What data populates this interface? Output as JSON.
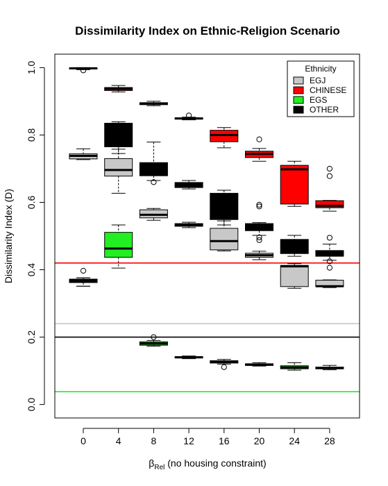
{
  "chart_data": {
    "type": "boxplot",
    "title": "Dissimilarity Index on Ethnic-Religion Scenario",
    "ylabel": "Dissimilarity Index (D)",
    "xlabel": {
      "beta": "β",
      "sub": "Rel",
      "rest": " (no housing constraint)"
    },
    "categories": [
      "0",
      "4",
      "8",
      "12",
      "16",
      "20",
      "24",
      "28"
    ],
    "yticks": [
      "0.0",
      "0.2",
      "0.4",
      "0.6",
      "0.8",
      "1.0"
    ],
    "ylim": [
      -0.04,
      1.04
    ],
    "legend": {
      "title": "Ethnicity",
      "position": "top-right",
      "entries": [
        {
          "label": "EGJ",
          "color": "#c8c8c8"
        },
        {
          "label": "CHINESE",
          "color": "#ff0000"
        },
        {
          "label": "EGS",
          "color": "#22ee22"
        },
        {
          "label": "OTHER",
          "color": "#000000"
        }
      ]
    },
    "hlines": [
      {
        "y": 0.42,
        "color": "#ff0000"
      },
      {
        "y": 0.24,
        "color": "#c8c8c8"
      },
      {
        "y": 0.2,
        "color": "#000000"
      },
      {
        "y": 0.038,
        "color": "#22ee22"
      }
    ],
    "boxes": [
      {
        "cat": 0,
        "series": "EGJ",
        "color": "#c8c8c8",
        "wmin": 0.727,
        "q1": 0.729,
        "med": 0.738,
        "q3": 0.744,
        "wmax": 0.759,
        "out": []
      },
      {
        "cat": 0,
        "series": "CHINESE",
        "color": "#ff0000",
        "wmin": 0.994,
        "q1": 0.996,
        "med": 0.998,
        "q3": 0.999,
        "wmax": 1.0,
        "out": [
          0.992
        ]
      },
      {
        "cat": 0,
        "series": "EGS",
        "color": "#22ee22",
        "wmin": 0.351,
        "q1": 0.362,
        "med": 0.366,
        "q3": 0.372,
        "wmax": 0.376,
        "out": [
          0.397
        ]
      },
      {
        "cat": 0,
        "series": "OTHER",
        "color": "#000000",
        "wmin": 0.351,
        "q1": 0.362,
        "med": 0.366,
        "q3": 0.372,
        "wmax": 0.376,
        "out": []
      },
      {
        "cat": 1,
        "series": "EGJ",
        "color": "#c8c8c8",
        "wmin": 0.627,
        "q1": 0.678,
        "med": 0.696,
        "q3": 0.73,
        "wmax": 0.758,
        "out": []
      },
      {
        "cat": 1,
        "series": "CHINESE",
        "color": "#ff0000",
        "wmin": 0.928,
        "q1": 0.932,
        "med": 0.937,
        "q3": 0.941,
        "wmax": 0.947,
        "out": []
      },
      {
        "cat": 1,
        "series": "EGS",
        "color": "#22ee22",
        "wmin": 0.405,
        "q1": 0.437,
        "med": 0.463,
        "q3": 0.511,
        "wmax": 0.533,
        "out": []
      },
      {
        "cat": 1,
        "series": "OTHER",
        "color": "#000000",
        "wmin": 0.745,
        "q1": 0.765,
        "med": 0.785,
        "q3": 0.835,
        "wmax": 0.839,
        "out": []
      },
      {
        "cat": 2,
        "series": "EGJ",
        "color": "#c8c8c8",
        "wmin": 0.547,
        "q1": 0.554,
        "med": 0.563,
        "q3": 0.578,
        "wmax": 0.582,
        "out": []
      },
      {
        "cat": 2,
        "series": "CHINESE",
        "color": "#ff0000",
        "wmin": 0.887,
        "q1": 0.89,
        "med": 0.893,
        "q3": 0.896,
        "wmax": 0.9,
        "out": []
      },
      {
        "cat": 2,
        "series": "EGS",
        "color": "#22ee22",
        "wmin": 0.173,
        "q1": 0.176,
        "med": 0.181,
        "q3": 0.186,
        "wmax": 0.19,
        "out": [
          0.2
        ]
      },
      {
        "cat": 2,
        "series": "OTHER",
        "color": "#000000",
        "wmin": 0.665,
        "q1": 0.679,
        "med": 0.697,
        "q3": 0.718,
        "wmax": 0.779,
        "out": [
          0.66
        ]
      },
      {
        "cat": 3,
        "series": "EGJ",
        "color": "#c8c8c8",
        "wmin": 0.525,
        "q1": 0.529,
        "med": 0.533,
        "q3": 0.537,
        "wmax": 0.541,
        "out": []
      },
      {
        "cat": 3,
        "series": "CHINESE",
        "color": "#ff0000",
        "wmin": 0.845,
        "q1": 0.847,
        "med": 0.849,
        "q3": 0.851,
        "wmax": 0.853,
        "out": [
          0.858
        ]
      },
      {
        "cat": 3,
        "series": "EGS",
        "color": "#22ee22",
        "wmin": 0.136,
        "q1": 0.138,
        "med": 0.14,
        "q3": 0.142,
        "wmax": 0.144,
        "out": []
      },
      {
        "cat": 3,
        "series": "OTHER",
        "color": "#000000",
        "wmin": 0.64,
        "q1": 0.644,
        "med": 0.65,
        "q3": 0.659,
        "wmax": 0.665,
        "out": []
      },
      {
        "cat": 4,
        "series": "EGJ",
        "color": "#c8c8c8",
        "wmin": 0.456,
        "q1": 0.459,
        "med": 0.485,
        "q3": 0.523,
        "wmax": 0.545,
        "out": []
      },
      {
        "cat": 4,
        "series": "CHINESE",
        "color": "#ff0000",
        "wmin": 0.762,
        "q1": 0.78,
        "med": 0.8,
        "q3": 0.814,
        "wmax": 0.822,
        "out": []
      },
      {
        "cat": 4,
        "series": "EGS",
        "color": "#22ee22",
        "wmin": 0.12,
        "q1": 0.123,
        "med": 0.126,
        "q3": 0.13,
        "wmax": 0.134,
        "out": [
          0.111
        ]
      },
      {
        "cat": 4,
        "series": "OTHER",
        "color": "#000000",
        "wmin": 0.533,
        "q1": 0.549,
        "med": 0.59,
        "q3": 0.627,
        "wmax": 0.636,
        "out": []
      },
      {
        "cat": 5,
        "series": "EGJ",
        "color": "#c8c8c8",
        "wmin": 0.43,
        "q1": 0.437,
        "med": 0.443,
        "q3": 0.449,
        "wmax": 0.455,
        "out": []
      },
      {
        "cat": 5,
        "series": "CHINESE",
        "color": "#ff0000",
        "wmin": 0.722,
        "q1": 0.733,
        "med": 0.744,
        "q3": 0.752,
        "wmax": 0.76,
        "out": [
          0.787
        ]
      },
      {
        "cat": 5,
        "series": "EGS",
        "color": "#22ee22",
        "wmin": 0.114,
        "q1": 0.116,
        "med": 0.118,
        "q3": 0.121,
        "wmax": 0.124,
        "out": []
      },
      {
        "cat": 5,
        "series": "OTHER",
        "color": "#000000",
        "wmin": 0.502,
        "q1": 0.516,
        "med": 0.528,
        "q3": 0.537,
        "wmax": 0.54,
        "out": [
          0.593,
          0.588,
          0.496,
          0.488
        ]
      },
      {
        "cat": 6,
        "series": "EGJ",
        "color": "#c8c8c8",
        "wmin": 0.345,
        "q1": 0.35,
        "med": 0.41,
        "q3": 0.413,
        "wmax": 0.418,
        "out": []
      },
      {
        "cat": 6,
        "series": "CHINESE",
        "color": "#ff0000",
        "wmin": 0.588,
        "q1": 0.595,
        "med": 0.698,
        "q3": 0.71,
        "wmax": 0.722,
        "out": []
      },
      {
        "cat": 6,
        "series": "EGS",
        "color": "#22ee22",
        "wmin": 0.102,
        "q1": 0.106,
        "med": 0.11,
        "q3": 0.115,
        "wmax": 0.124,
        "out": []
      },
      {
        "cat": 6,
        "series": "OTHER",
        "color": "#000000",
        "wmin": 0.44,
        "q1": 0.448,
        "med": 0.466,
        "q3": 0.49,
        "wmax": 0.502,
        "out": []
      },
      {
        "cat": 7,
        "series": "EGJ",
        "color": "#c8c8c8",
        "wmin": 0.347,
        "q1": 0.35,
        "med": 0.351,
        "q3": 0.369,
        "wmax": 0.37,
        "out": []
      },
      {
        "cat": 7,
        "series": "CHINESE",
        "color": "#ff0000",
        "wmin": 0.574,
        "q1": 0.584,
        "med": 0.59,
        "q3": 0.605,
        "wmax": 0.606,
        "out": [
          0.7,
          0.678
        ]
      },
      {
        "cat": 7,
        "series": "EGS",
        "color": "#22ee22",
        "wmin": 0.103,
        "q1": 0.106,
        "med": 0.108,
        "q3": 0.111,
        "wmax": 0.116,
        "out": []
      },
      {
        "cat": 7,
        "series": "OTHER",
        "color": "#000000",
        "wmin": 0.428,
        "q1": 0.44,
        "med": 0.45,
        "q3": 0.457,
        "wmax": 0.476,
        "out": [
          0.495,
          0.425,
          0.406
        ]
      }
    ]
  }
}
